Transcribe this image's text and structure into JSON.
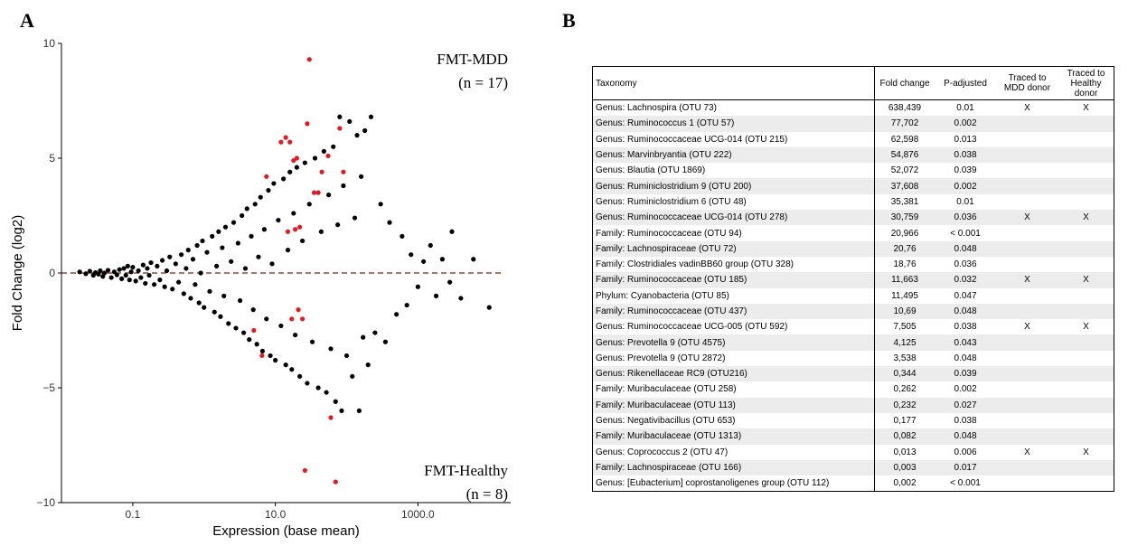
{
  "panels": {
    "a": "A",
    "b": "B"
  },
  "chart_data": {
    "type": "scatter",
    "title": "",
    "xlabel": "Expression (base mean)",
    "ylabel": "Fold Change (log2)",
    "x_scale": "log10",
    "xlim": [
      0.01,
      20000
    ],
    "ylim": [
      -10,
      10
    ],
    "x_ticks": [
      0.1,
      10.0,
      1000.0
    ],
    "x_tick_labels": [
      "0.1",
      "10.0",
      "1000.0"
    ],
    "y_ticks": [
      -10,
      -5,
      0,
      5,
      10
    ],
    "y_tick_labels": [
      "−10",
      "−5",
      "0",
      "5",
      "10"
    ],
    "reference_line": {
      "y": 0,
      "style": "dashed",
      "color": "#8b1a1a"
    },
    "annotations": [
      {
        "text": "FMT-MDD",
        "subtext": "(n = 17)"
      },
      {
        "text": "FMT-Healthy",
        "subtext": "(n = 8)"
      }
    ],
    "colors": {
      "not_significant": "#000000",
      "significant": "#e41a1c"
    },
    "series": [
      {
        "significant": false,
        "points": [
          [
            0.018,
            0.05
          ],
          [
            0.022,
            -0.03
          ],
          [
            0.025,
            0.08
          ],
          [
            0.028,
            -0.1
          ],
          [
            0.03,
            0.02
          ],
          [
            0.033,
            -0.05
          ],
          [
            0.035,
            0.1
          ],
          [
            0.038,
            -0.15
          ],
          [
            0.04,
            0.0
          ],
          [
            0.045,
            0.12
          ],
          [
            0.05,
            -0.2
          ],
          [
            0.055,
            0.05
          ],
          [
            0.06,
            -0.08
          ],
          [
            0.065,
            0.15
          ],
          [
            0.07,
            -0.25
          ],
          [
            0.075,
            0.2
          ],
          [
            0.08,
            -0.1
          ],
          [
            0.085,
            0.3
          ],
          [
            0.09,
            -0.3
          ],
          [
            0.095,
            0.05
          ],
          [
            0.1,
            0.25
          ],
          [
            0.11,
            -0.35
          ],
          [
            0.12,
            0.1
          ],
          [
            0.13,
            -0.2
          ],
          [
            0.14,
            0.35
          ],
          [
            0.15,
            -0.45
          ],
          [
            0.16,
            0.2
          ],
          [
            0.17,
            -0.1
          ],
          [
            0.18,
            0.45
          ],
          [
            0.2,
            -0.5
          ],
          [
            0.22,
            0.3
          ],
          [
            0.24,
            -0.3
          ],
          [
            0.26,
            0.55
          ],
          [
            0.28,
            -0.6
          ],
          [
            0.3,
            0.1
          ],
          [
            0.33,
            0.7
          ],
          [
            0.36,
            -0.7
          ],
          [
            0.4,
            0.4
          ],
          [
            0.44,
            -0.4
          ],
          [
            0.48,
            0.8
          ],
          [
            0.52,
            -0.9
          ],
          [
            0.56,
            0.2
          ],
          [
            0.6,
            1.0
          ],
          [
            0.65,
            -1.1
          ],
          [
            0.7,
            0.6
          ],
          [
            0.75,
            -0.5
          ],
          [
            0.8,
            1.2
          ],
          [
            0.85,
            -1.3
          ],
          [
            0.9,
            0.0
          ],
          [
            0.95,
            1.4
          ],
          [
            1.0,
            -1.5
          ],
          [
            1.1,
            0.9
          ],
          [
            1.2,
            -0.8
          ],
          [
            1.3,
            1.6
          ],
          [
            1.4,
            -1.7
          ],
          [
            1.5,
            0.3
          ],
          [
            1.6,
            1.8
          ],
          [
            1.7,
            -1.9
          ],
          [
            1.8,
            1.1
          ],
          [
            1.9,
            -1.0
          ],
          [
            2.0,
            2.0
          ],
          [
            2.2,
            -2.2
          ],
          [
            2.4,
            0.5
          ],
          [
            2.6,
            2.2
          ],
          [
            2.8,
            -2.4
          ],
          [
            3.0,
            1.3
          ],
          [
            3.2,
            -1.2
          ],
          [
            3.4,
            2.5
          ],
          [
            3.6,
            -2.6
          ],
          [
            3.8,
            0.2
          ],
          [
            4.0,
            2.8
          ],
          [
            4.3,
            -2.9
          ],
          [
            4.6,
            1.6
          ],
          [
            4.9,
            -1.6
          ],
          [
            5.2,
            3.0
          ],
          [
            5.5,
            -3.1
          ],
          [
            5.8,
            0.7
          ],
          [
            6.2,
            3.3
          ],
          [
            6.6,
            -3.4
          ],
          [
            7.0,
            1.9
          ],
          [
            7.5,
            -2.0
          ],
          [
            8.0,
            3.6
          ],
          [
            8.5,
            -3.6
          ],
          [
            9.0,
            0.4
          ],
          [
            9.5,
            3.9
          ],
          [
            10.0,
            -3.8
          ],
          [
            11.0,
            2.3
          ],
          [
            12.0,
            -2.3
          ],
          [
            13.0,
            4.1
          ],
          [
            14.0,
            -4.0
          ],
          [
            15.0,
            1.0
          ],
          [
            16.0,
            4.4
          ],
          [
            17.0,
            -4.2
          ],
          [
            18.0,
            2.6
          ],
          [
            19.0,
            -2.7
          ],
          [
            20.0,
            4.6
          ],
          [
            22.0,
            -4.5
          ],
          [
            24.0,
            1.4
          ],
          [
            26.0,
            4.8
          ],
          [
            28.0,
            -4.8
          ],
          [
            30.0,
            3.0
          ],
          [
            33.0,
            -3.0
          ],
          [
            36.0,
            5.0
          ],
          [
            40.0,
            -5.0
          ],
          [
            44.0,
            1.8
          ],
          [
            48.0,
            5.3
          ],
          [
            52.0,
            -5.2
          ],
          [
            56.0,
            3.4
          ],
          [
            60.0,
            -3.3
          ],
          [
            65.0,
            5.5
          ],
          [
            70.0,
            -5.6
          ],
          [
            75.0,
            2.1
          ],
          [
            80.0,
            6.8
          ],
          [
            85.0,
            -6.0
          ],
          [
            90.0,
            3.8
          ],
          [
            100.0,
            -3.6
          ],
          [
            110.0,
            6.6
          ],
          [
            120.0,
            -4.5
          ],
          [
            130.0,
            2.4
          ],
          [
            140.0,
            6.0
          ],
          [
            150.0,
            -6.0
          ],
          [
            160.0,
            4.2
          ],
          [
            170.0,
            -2.8
          ],
          [
            180.0,
            6.2
          ],
          [
            200.0,
            -4.0
          ],
          [
            220.0,
            6.8
          ],
          [
            250.0,
            -2.6
          ],
          [
            300.0,
            3.0
          ],
          [
            350.0,
            -3.0
          ],
          [
            400.0,
            2.2
          ],
          [
            500.0,
            -1.8
          ],
          [
            600.0,
            1.6
          ],
          [
            700.0,
            -1.4
          ],
          [
            800.0,
            0.8
          ],
          [
            1000.0,
            -0.6
          ],
          [
            1200.0,
            0.5
          ],
          [
            1500.0,
            1.2
          ],
          [
            1800.0,
            -1.0
          ],
          [
            2200.0,
            0.6
          ],
          [
            2800.0,
            -0.4
          ],
          [
            3000.0,
            1.8
          ],
          [
            4000.0,
            -1.1
          ],
          [
            6000.0,
            0.6
          ],
          [
            10000.0,
            -1.5
          ]
        ]
      },
      {
        "significant": true,
        "points": [
          [
            5.0,
            -2.5
          ],
          [
            6.5,
            -3.6
          ],
          [
            7.5,
            4.2
          ],
          [
            12.0,
            5.7
          ],
          [
            14.0,
            5.9
          ],
          [
            16.0,
            5.7
          ],
          [
            18.0,
            4.9
          ],
          [
            20.0,
            5.0
          ],
          [
            22.0,
            2.0
          ],
          [
            24.0,
            -2.0
          ],
          [
            26.0,
            -8.6
          ],
          [
            30.0,
            9.3
          ],
          [
            35.0,
            3.5
          ],
          [
            40.0,
            3.5
          ],
          [
            45.0,
            4.4
          ],
          [
            55.0,
            5.1
          ],
          [
            60.0,
            -6.3
          ],
          [
            70.0,
            -9.1
          ],
          [
            80.0,
            6.3
          ],
          [
            90.0,
            4.4
          ],
          [
            15.0,
            1.8
          ],
          [
            19.0,
            1.9
          ],
          [
            21.0,
            -1.6
          ],
          [
            17.0,
            -2.0
          ],
          [
            28.0,
            6.5
          ]
        ]
      }
    ]
  },
  "table": {
    "headers": {
      "taxonomy": "Taxonomy",
      "fold_change": "Fold change",
      "p_adjusted": "P-adjusted",
      "mdd_line1": "Traced to",
      "mdd_line2": "MDD donor",
      "healthy_line1": "Traced to",
      "healthy_line2": "Healthy donor"
    },
    "rows": [
      {
        "taxonomy": "Genus: Lachnospira (OTU 73)",
        "fold_change": "638,439",
        "p_adjusted": "0.01",
        "mdd": "X",
        "healthy": "X"
      },
      {
        "taxonomy": "Genus: Ruminococcus 1 (OTU 57)",
        "fold_change": "77,702",
        "p_adjusted": "0.002",
        "mdd": "",
        "healthy": ""
      },
      {
        "taxonomy": "Genus: Ruminococcaceae UCG-014 (OTU 215)",
        "fold_change": "62,598",
        "p_adjusted": "0.013",
        "mdd": "",
        "healthy": ""
      },
      {
        "taxonomy": "Genus: Marvinbryantia (OTU 222)",
        "fold_change": "54,876",
        "p_adjusted": "0.038",
        "mdd": "",
        "healthy": ""
      },
      {
        "taxonomy": "Genus: Blautia (OTU 1869)",
        "fold_change": "52,072",
        "p_adjusted": "0.039",
        "mdd": "",
        "healthy": ""
      },
      {
        "taxonomy": "Genus: Ruminiclostridium 9 (OTU 200)",
        "fold_change": "37,608",
        "p_adjusted": "0.002",
        "mdd": "",
        "healthy": ""
      },
      {
        "taxonomy": "Genus: Ruminiclostridium 6 (OTU 48)",
        "fold_change": "35,381",
        "p_adjusted": "0.01",
        "mdd": "",
        "healthy": ""
      },
      {
        "taxonomy": "Genus: Ruminococcaceae UCG-014 (OTU 278)",
        "fold_change": "30,759",
        "p_adjusted": "0.036",
        "mdd": "X",
        "healthy": "X"
      },
      {
        "taxonomy": "Family: Ruminococcaceae (OTU 94)",
        "fold_change": "20,966",
        "p_adjusted": "< 0.001",
        "mdd": "",
        "healthy": ""
      },
      {
        "taxonomy": "Family: Lachnospiraceae (OTU 72)",
        "fold_change": "20,76",
        "p_adjusted": "0.048",
        "mdd": "",
        "healthy": ""
      },
      {
        "taxonomy": "Family: Clostridiales vadinBB60 group (OTU 328)",
        "fold_change": "18,76",
        "p_adjusted": "0.036",
        "mdd": "",
        "healthy": ""
      },
      {
        "taxonomy": "Family: Ruminococcaceae (OTU 185)",
        "fold_change": "11,663",
        "p_adjusted": "0.032",
        "mdd": "X",
        "healthy": "X"
      },
      {
        "taxonomy": "Phylum: Cyanobacteria (OTU 85)",
        "fold_change": "11,495",
        "p_adjusted": "0.047",
        "mdd": "",
        "healthy": ""
      },
      {
        "taxonomy": "Family: Ruminococcaceae (OTU 437)",
        "fold_change": "10,69",
        "p_adjusted": "0.048",
        "mdd": "",
        "healthy": ""
      },
      {
        "taxonomy": "Genus: Ruminococcaceae UCG-005 (OTU 592)",
        "fold_change": "7,505",
        "p_adjusted": "0.038",
        "mdd": "X",
        "healthy": "X"
      },
      {
        "taxonomy": "Genus: Prevotella 9 (OTU 4575)",
        "fold_change": "4,125",
        "p_adjusted": "0.043",
        "mdd": "",
        "healthy": ""
      },
      {
        "taxonomy": "Genus: Prevotella 9 (OTU 2872)",
        "fold_change": "3,538",
        "p_adjusted": "0.048",
        "mdd": "",
        "healthy": ""
      },
      {
        "taxonomy": "Genus: Rikenellaceae RC9 (OTU216)",
        "fold_change": "0,344",
        "p_adjusted": "0.039",
        "mdd": "",
        "healthy": ""
      },
      {
        "taxonomy": "Family: Muribaculaceae (OTU 258)",
        "fold_change": "0,262",
        "p_adjusted": "0.002",
        "mdd": "",
        "healthy": ""
      },
      {
        "taxonomy": "Family: Muribaculaceae (OTU 113)",
        "fold_change": "0,232",
        "p_adjusted": "0.027",
        "mdd": "",
        "healthy": ""
      },
      {
        "taxonomy": "Genus: Negativibacillus (OTU 653)",
        "fold_change": "0,177",
        "p_adjusted": "0.038",
        "mdd": "",
        "healthy": ""
      },
      {
        "taxonomy": "Family: Muribaculaceae (OTU 1313)",
        "fold_change": "0,082",
        "p_adjusted": "0.048",
        "mdd": "",
        "healthy": ""
      },
      {
        "taxonomy": "Genus: Coprococcus 2 (OTU 47)",
        "fold_change": "0,013",
        "p_adjusted": "0.006",
        "mdd": "X",
        "healthy": "X"
      },
      {
        "taxonomy": "Family: Lachnospiraceae (OTU 166)",
        "fold_change": "0,003",
        "p_adjusted": "0.017",
        "mdd": "",
        "healthy": ""
      },
      {
        "taxonomy": "Genus: [Eubacterium] coprostanoligenes group (OTU 112)",
        "fold_change": "0,002",
        "p_adjusted": "< 0.001",
        "mdd": "",
        "healthy": ""
      }
    ]
  }
}
